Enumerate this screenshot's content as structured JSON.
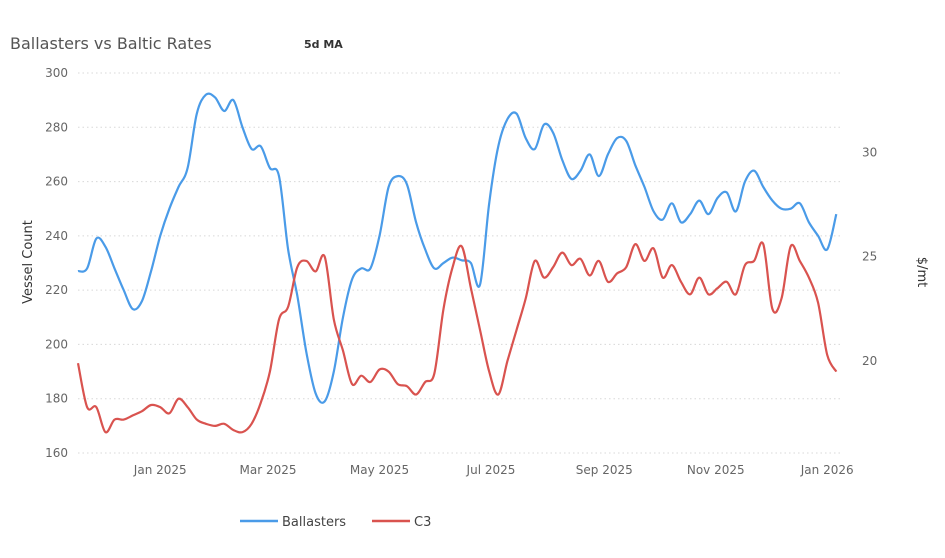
{
  "header": {
    "title": "Ballasters vs Baltic Rates",
    "subtitle": "5d MA"
  },
  "chart_data": {
    "type": "line",
    "title": "Ballasters vs Baltic Rates",
    "subtitle": "5d MA",
    "xlabel": "",
    "ylabel": "Vessel Count",
    "y2label": "$/mt",
    "x_tick_labels": [
      "Jan 2025",
      "Mar 2025",
      "May 2025",
      "Jul 2025",
      "Sep 2025",
      "Nov 2025",
      "Jan 2026"
    ],
    "y_ticks": [
      160,
      180,
      200,
      220,
      240,
      260,
      280,
      300
    ],
    "y2_ticks": [
      20,
      25,
      30
    ],
    "ylim": [
      160,
      300
    ],
    "y2lim": [
      15.6,
      33.8
    ],
    "grid": "horizontal dotted",
    "legend_position": "bottom",
    "series": [
      {
        "name": "Ballasters",
        "axis": "left",
        "color": "#4a9be8",
        "x": [
          "2024-12-01",
          "2024-12-06",
          "2024-12-11",
          "2024-12-16",
          "2024-12-21",
          "2024-12-26",
          "2024-12-31",
          "2025-01-05",
          "2025-01-10",
          "2025-01-15",
          "2025-01-20",
          "2025-01-25",
          "2025-01-30",
          "2025-02-04",
          "2025-02-09",
          "2025-02-14",
          "2025-02-19",
          "2025-02-24",
          "2025-03-01",
          "2025-03-06",
          "2025-03-11",
          "2025-03-16",
          "2025-03-21",
          "2025-03-26",
          "2025-03-31",
          "2025-04-05",
          "2025-04-10",
          "2025-04-15",
          "2025-04-20",
          "2025-04-25",
          "2025-04-30",
          "2025-05-05",
          "2025-05-10",
          "2025-05-15",
          "2025-05-20",
          "2025-05-25",
          "2025-05-30",
          "2025-06-04",
          "2025-06-09",
          "2025-06-14",
          "2025-06-19",
          "2025-06-24",
          "2025-06-29",
          "2025-07-04",
          "2025-07-09",
          "2025-07-14",
          "2025-07-19",
          "2025-07-24",
          "2025-07-29",
          "2025-08-03",
          "2025-08-08",
          "2025-08-13",
          "2025-08-18",
          "2025-08-23",
          "2025-08-28",
          "2025-09-02",
          "2025-09-07",
          "2025-09-12",
          "2025-09-17",
          "2025-09-22",
          "2025-09-27",
          "2025-10-02",
          "2025-10-07",
          "2025-10-12",
          "2025-10-17",
          "2025-10-22",
          "2025-10-27",
          "2025-11-01",
          "2025-11-06",
          "2025-11-11",
          "2025-11-16",
          "2025-11-21",
          "2025-11-26",
          "2025-12-01",
          "2025-12-06",
          "2025-12-11",
          "2025-12-16",
          "2025-12-21",
          "2025-12-26",
          "2025-12-31",
          "2026-01-05",
          "2026-01-10",
          "2026-01-15",
          "2026-01-20"
        ],
        "values": [
          227,
          228,
          239,
          236,
          228,
          220,
          213,
          216,
          227,
          240,
          250,
          258,
          265,
          285,
          292,
          291,
          286,
          290,
          280,
          272,
          273,
          265,
          262,
          235,
          218,
          197,
          182,
          179,
          190,
          210,
          224,
          228,
          228,
          240,
          258,
          262,
          259,
          245,
          235,
          228,
          230,
          232,
          231,
          230,
          222,
          252,
          273,
          283,
          285,
          276,
          272,
          281,
          278,
          268,
          261,
          264,
          270,
          262,
          270,
          276,
          275,
          266,
          258,
          249,
          246,
          252,
          245,
          248,
          253,
          248,
          254,
          256,
          249,
          260,
          264,
          258,
          253,
          250,
          250,
          252,
          245,
          240,
          235,
          248
        ]
      },
      {
        "name": "C3",
        "axis": "right",
        "color": "#d9534f",
        "x": [
          "2024-12-01",
          "2024-12-06",
          "2024-12-11",
          "2024-12-16",
          "2024-12-21",
          "2024-12-26",
          "2024-12-31",
          "2025-01-05",
          "2025-01-10",
          "2025-01-15",
          "2025-01-20",
          "2025-01-25",
          "2025-01-30",
          "2025-02-04",
          "2025-02-09",
          "2025-02-14",
          "2025-02-19",
          "2025-02-24",
          "2025-03-01",
          "2025-03-06",
          "2025-03-11",
          "2025-03-16",
          "2025-03-21",
          "2025-03-26",
          "2025-03-31",
          "2025-04-05",
          "2025-04-10",
          "2025-04-15",
          "2025-04-20",
          "2025-04-25",
          "2025-04-30",
          "2025-05-05",
          "2025-05-10",
          "2025-05-15",
          "2025-05-20",
          "2025-05-25",
          "2025-05-30",
          "2025-06-04",
          "2025-06-09",
          "2025-06-14",
          "2025-06-19",
          "2025-06-24",
          "2025-06-29",
          "2025-07-04",
          "2025-07-09",
          "2025-07-14",
          "2025-07-19",
          "2025-07-24",
          "2025-07-29",
          "2025-08-03",
          "2025-08-08",
          "2025-08-13",
          "2025-08-18",
          "2025-08-23",
          "2025-08-28",
          "2025-09-02",
          "2025-09-07",
          "2025-09-12",
          "2025-09-17",
          "2025-09-22",
          "2025-09-27",
          "2025-10-02",
          "2025-10-07",
          "2025-10-12",
          "2025-10-17",
          "2025-10-22",
          "2025-10-27",
          "2025-11-01",
          "2025-11-06",
          "2025-11-11",
          "2025-11-16",
          "2025-11-21",
          "2025-11-26",
          "2025-12-01",
          "2025-12-06",
          "2025-12-11",
          "2025-12-16",
          "2025-12-21",
          "2025-12-26",
          "2025-12-31",
          "2026-01-05",
          "2026-01-10",
          "2026-01-15",
          "2026-01-20"
        ],
        "values": [
          19.9,
          17.8,
          17.8,
          16.6,
          17.2,
          17.2,
          17.4,
          17.6,
          17.9,
          17.8,
          17.5,
          18.2,
          17.8,
          17.2,
          17.0,
          16.9,
          17.0,
          16.7,
          16.6,
          17.0,
          18.0,
          19.5,
          22.0,
          22.6,
          24.5,
          24.8,
          24.3,
          25.0,
          22.0,
          20.5,
          18.9,
          19.3,
          19.0,
          19.6,
          19.5,
          18.9,
          18.8,
          18.4,
          19.0,
          19.4,
          22.5,
          24.5,
          25.5,
          23.5,
          21.5,
          19.5,
          18.4,
          20.0,
          21.5,
          23.0,
          24.8,
          24.0,
          24.5,
          25.2,
          24.6,
          24.9,
          24.1,
          24.8,
          23.8,
          24.2,
          24.5,
          25.6,
          24.8,
          25.4,
          24.0,
          24.6,
          23.8,
          23.2,
          24.0,
          23.2,
          23.5,
          23.8,
          23.2,
          24.6,
          24.8,
          25.6,
          22.5,
          23.0,
          25.5,
          24.8,
          24.0,
          22.8,
          20.3,
          19.5
        ]
      }
    ]
  }
}
